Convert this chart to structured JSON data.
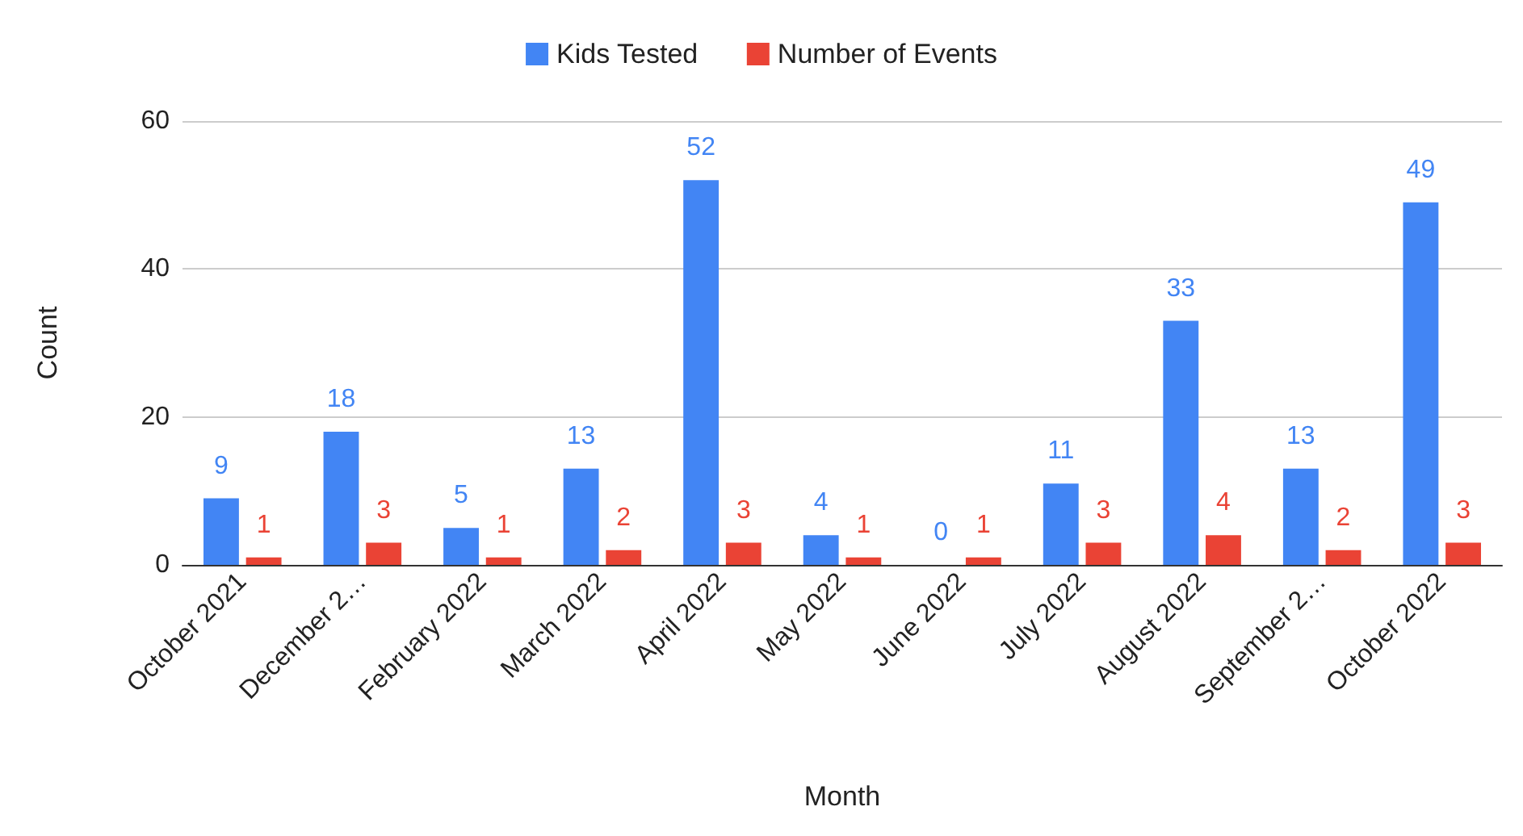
{
  "chart_data": {
    "type": "bar",
    "xlabel": "Month",
    "ylabel": "Count",
    "categories": [
      "October 2021",
      "December 2…",
      "February 2022",
      "March 2022",
      "April 2022",
      "May 2022",
      "June 2022",
      "July 2022",
      "August 2022",
      "September 2…",
      "October 2022"
    ],
    "series": [
      {
        "name": "Kids Tested",
        "color": "#4285f4",
        "values": [
          9,
          18,
          5,
          13,
          52,
          4,
          0,
          11,
          33,
          13,
          49
        ]
      },
      {
        "name": "Number of Events",
        "color": "#ea4335",
        "values": [
          1,
          3,
          1,
          2,
          3,
          1,
          1,
          3,
          4,
          2,
          3
        ]
      }
    ],
    "ylim": [
      0,
      60
    ],
    "yticks": [
      0,
      20,
      40,
      60
    ],
    "grid": "y",
    "legend": "top",
    "data_labels": true
  }
}
